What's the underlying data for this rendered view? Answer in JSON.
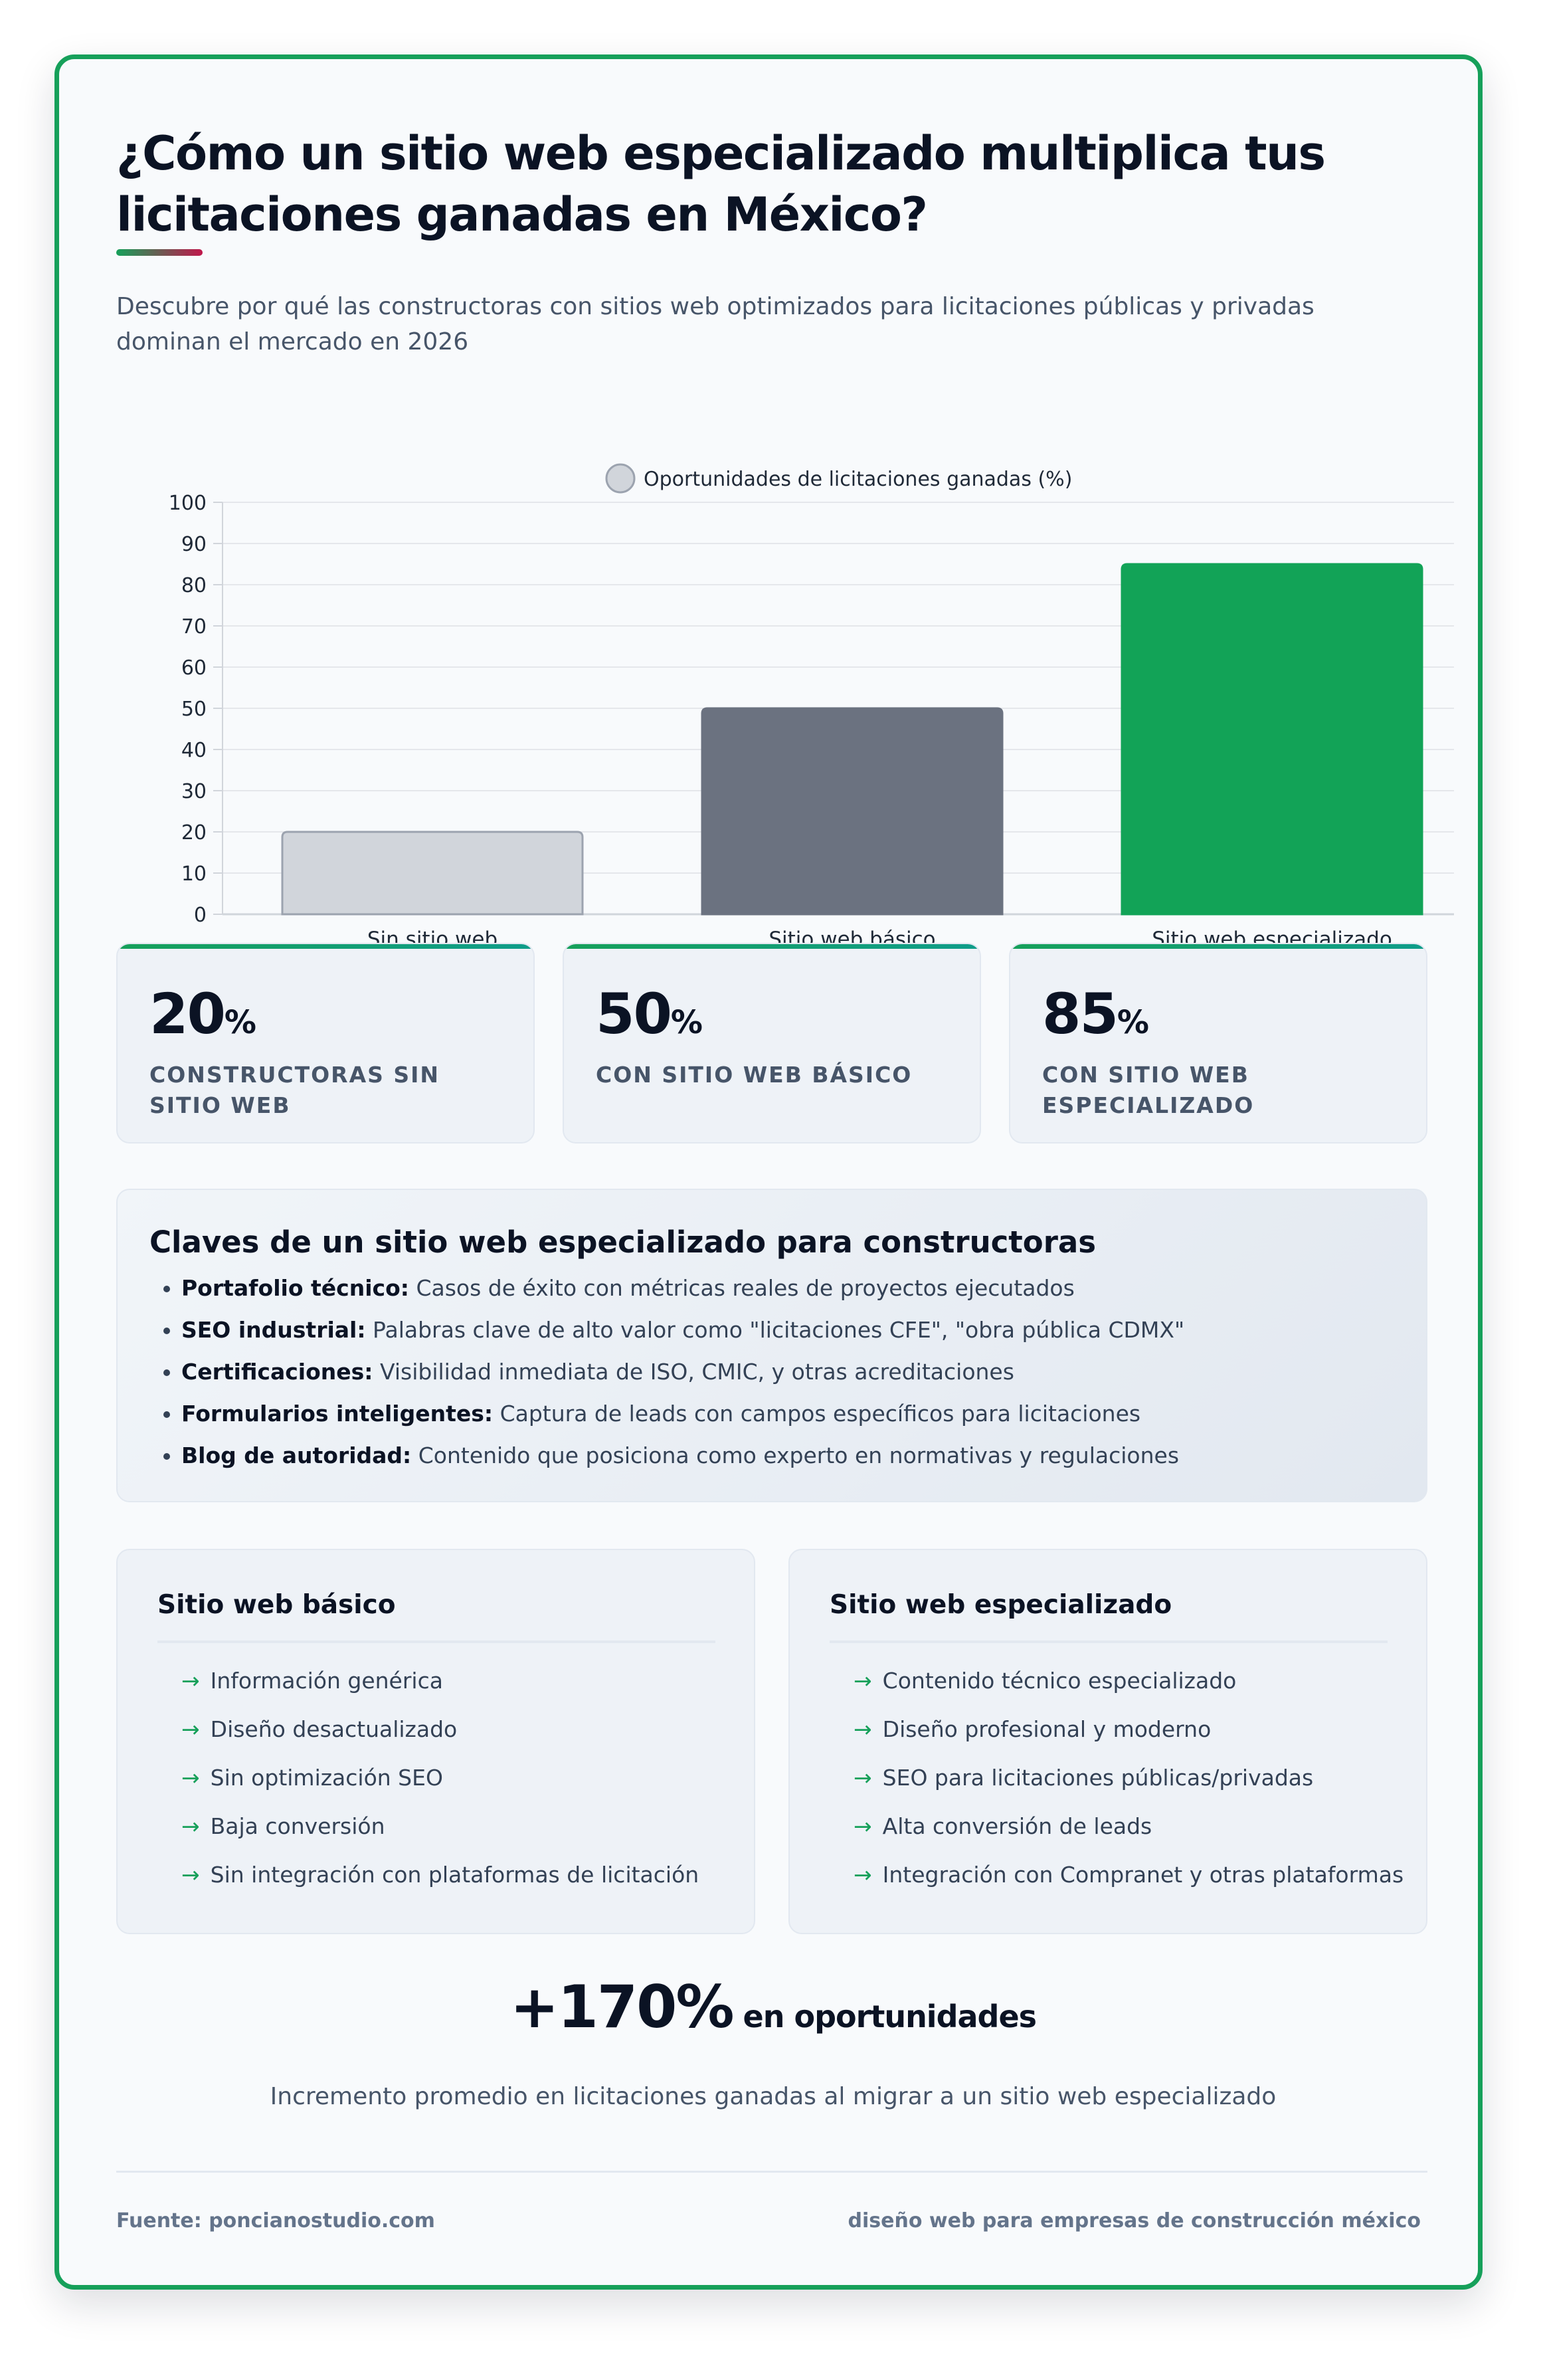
{
  "header": {
    "title": "¿Cómo un sitio web especializado multiplica tus licitaciones ganadas en México?",
    "subtitle": "Descubre por qué las constructoras con sitios web optimizados para licitaciones públicas y privadas dominan el mercado en 2026"
  },
  "chart_data": {
    "type": "bar",
    "categories": [
      "Sin sitio web",
      "Sitio web básico",
      "Sitio web especializado"
    ],
    "series": [
      {
        "name": "Oportunidades de licitaciones ganadas (%)",
        "values": [
          20,
          50,
          85
        ]
      }
    ],
    "bar_colors": [
      "#d1d5db",
      "#6b7280",
      "#12a357"
    ],
    "bar_border_colors": [
      "#9ca3af",
      "#6b7280",
      "#12a357"
    ],
    "legend_color": "#d1d5db",
    "ylim": [
      0,
      100
    ],
    "yticks": [
      "0",
      "10",
      "20",
      "30",
      "40",
      "50",
      "60",
      "70",
      "80",
      "90",
      "100"
    ],
    "grid": true,
    "legend_position": "top-center"
  },
  "stats": [
    {
      "value": "20",
      "unit": "%",
      "label": "Constructoras sin sitio web"
    },
    {
      "value": "50",
      "unit": "%",
      "label": "Con sitio web básico"
    },
    {
      "value": "85",
      "unit": "%",
      "label": "Con sitio web especializado"
    }
  ],
  "keys": {
    "title": "Claves de un sitio web especializado para constructoras",
    "items": [
      {
        "term": "Portafolio técnico:",
        "text": " Casos de éxito con métricas reales de proyectos ejecutados"
      },
      {
        "term": "SEO industrial:",
        "text": " Palabras clave de alto valor como \"licitaciones CFE\", \"obra pública CDMX\""
      },
      {
        "term": "Certificaciones:",
        "text": " Visibilidad inmediata de ISO, CMIC, y otras acreditaciones"
      },
      {
        "term": "Formularios inteligentes:",
        "text": " Captura de leads con campos específicos para licitaciones"
      },
      {
        "term": "Blog de autoridad:",
        "text": " Contenido que posiciona como experto en normativas y regulaciones"
      }
    ]
  },
  "comparison": {
    "arrow": "→",
    "basic": {
      "title": "Sitio web básico",
      "items": [
        "Información genérica",
        "Diseño desactualizado",
        "Sin optimización SEO",
        "Baja conversión",
        "Sin integración con plataformas de licitación"
      ]
    },
    "specialized": {
      "title": "Sitio web especializado",
      "items": [
        "Contenido técnico especializado",
        "Diseño profesional y moderno",
        "SEO para licitaciones públicas/privadas",
        "Alta conversión de leads",
        "Integración con Compranet y otras plataformas"
      ]
    }
  },
  "highlight": {
    "value": "+170%",
    "label": " en oportunidades",
    "description": "Incremento promedio en licitaciones ganadas al migrar a un sitio web especializado"
  },
  "footer": {
    "source": "Fuente: poncianostudio.com",
    "tagline": "diseño web para empresas de construcción méxico"
  }
}
